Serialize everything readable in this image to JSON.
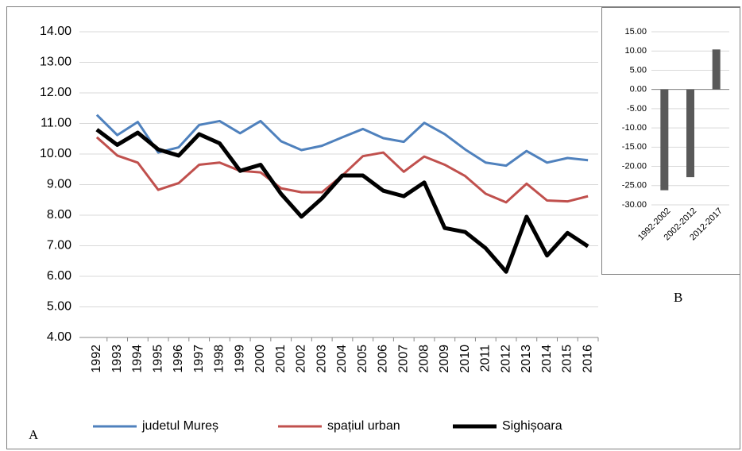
{
  "chart_data": [
    {
      "type": "line",
      "panel": "A",
      "categories": [
        "1992",
        "1993",
        "1994",
        "1995",
        "1996",
        "1997",
        "1998",
        "1999",
        "2000",
        "2001",
        "2002",
        "2003",
        "2004",
        "2005",
        "2006",
        "2007",
        "2008",
        "2009",
        "2010",
        "2011",
        "2012",
        "2013",
        "2014",
        "2015",
        "2016"
      ],
      "series": [
        {
          "name": "judetul Mureș",
          "color": "#4f81bd",
          "width": 3,
          "values": [
            11.28,
            10.62,
            11.05,
            10.05,
            10.22,
            10.95,
            11.08,
            10.68,
            11.08,
            10.42,
            10.13,
            10.27,
            10.55,
            10.82,
            10.52,
            10.4,
            11.02,
            10.65,
            10.15,
            9.72,
            9.62,
            10.1,
            9.72,
            9.87,
            9.8
          ]
        },
        {
          "name": "spațiul urban",
          "color": "#c0504d",
          "width": 3,
          "values": [
            10.55,
            9.95,
            9.72,
            8.83,
            9.05,
            9.65,
            9.72,
            9.45,
            9.4,
            8.88,
            8.75,
            8.75,
            9.3,
            9.93,
            10.05,
            9.42,
            9.92,
            9.65,
            9.28,
            8.7,
            8.42,
            9.03,
            8.48,
            8.45,
            8.62
          ]
        },
        {
          "name": "Sighișoara",
          "color": "#000000",
          "width": 5,
          "values": [
            10.8,
            10.3,
            10.7,
            10.15,
            9.95,
            10.65,
            10.35,
            9.45,
            9.65,
            8.7,
            7.95,
            8.55,
            9.3,
            9.3,
            8.8,
            8.62,
            9.07,
            7.58,
            7.45,
            6.92,
            6.15,
            7.95,
            6.68,
            7.42,
            6.98
          ]
        }
      ],
      "ylim": [
        4,
        14
      ],
      "yticks": [
        {
          "value": 4,
          "label": "4.00"
        },
        {
          "value": 5,
          "label": "5.00"
        },
        {
          "value": 6,
          "label": "6.00"
        },
        {
          "value": 7,
          "label": "7.00"
        },
        {
          "value": 8,
          "label": "8.00"
        },
        {
          "value": 9,
          "label": "9.00"
        },
        {
          "value": 10,
          "label": "10.00"
        },
        {
          "value": 11,
          "label": "11.00"
        },
        {
          "value": 12,
          "label": "12.00"
        },
        {
          "value": 13,
          "label": "13.00"
        },
        {
          "value": 14,
          "label": "14.00"
        }
      ],
      "grid": true
    },
    {
      "type": "bar",
      "panel": "B",
      "categories": [
        "1992-2002",
        "2002-2012",
        "2012-2017"
      ],
      "values": [
        -26.2,
        -22.8,
        10.4
      ],
      "color": "#595959",
      "ylim": [
        -30,
        15
      ],
      "yticks": [
        {
          "value": -30,
          "label": "-30.00"
        },
        {
          "value": -25,
          "label": "-25.00"
        },
        {
          "value": -20,
          "label": "-20.00"
        },
        {
          "value": -15,
          "label": "-15.00"
        },
        {
          "value": -10,
          "label": "-10.00"
        },
        {
          "value": -5,
          "label": "-5.00"
        },
        {
          "value": 0,
          "label": "0.00"
        },
        {
          "value": 5,
          "label": "5.00"
        },
        {
          "value": 10,
          "label": "10.00"
        },
        {
          "value": 15,
          "label": "15.00"
        }
      ],
      "grid": true
    }
  ]
}
